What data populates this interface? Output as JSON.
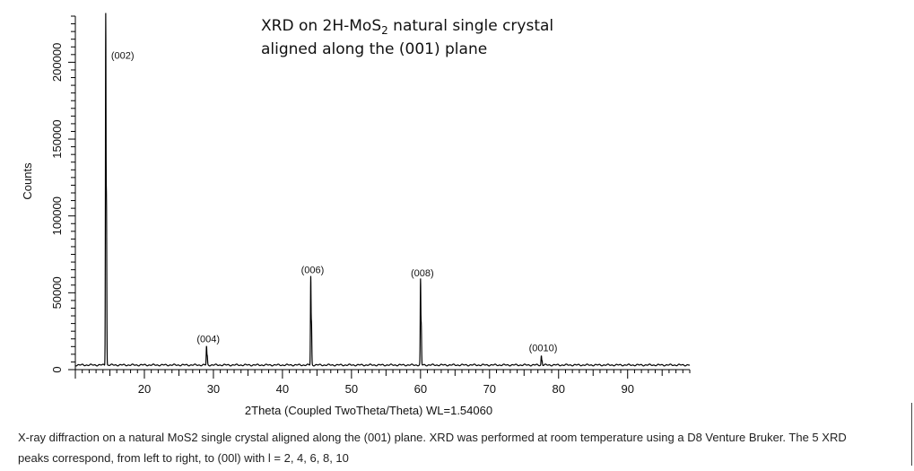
{
  "chart_data": {
    "type": "line",
    "title_line1_prefix": "XRD on 2H-MoS",
    "title_line1_sub": "2",
    "title_line1_suffix": " natural single crystal",
    "title_line2": "aligned along the (001) plane",
    "xlabel": "2Theta (Coupled TwoTheta/Theta) WL=1.54060",
    "ylabel": "Counts",
    "xlim": [
      10,
      99
    ],
    "ylim": [
      0,
      230000
    ],
    "xticks": [
      20,
      30,
      40,
      50,
      60,
      70,
      80,
      90
    ],
    "yticks": [
      0,
      50000,
      100000,
      150000,
      200000
    ],
    "baseline": 3000,
    "peaks": [
      {
        "label": "(002)",
        "x": 14.4,
        "y": 226000
      },
      {
        "label": "(004)",
        "x": 29.0,
        "y": 12000
      },
      {
        "label": "(006)",
        "x": 44.1,
        "y": 57000
      },
      {
        "label": "(008)",
        "x": 60.0,
        "y": 55000
      },
      {
        "label": "(0010)",
        "x": 77.5,
        "y": 6000
      }
    ],
    "grid": false
  },
  "caption": {
    "line1": "X-ray diffraction on a natural MoS2 single crystal aligned along the (001) plane. XRD was performed at room temperature using a D8 Venture Bruker. The 5 XRD",
    "line2": "peaks correspond, from left to right, to (00l) with l = 2, 4, 6, 8, 10"
  },
  "colors": {
    "line": "#000000",
    "axis": "#000000",
    "text": "#111111"
  }
}
